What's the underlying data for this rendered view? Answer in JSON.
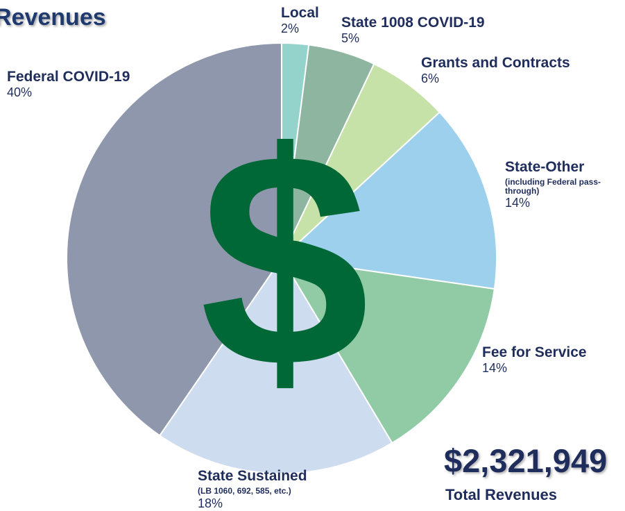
{
  "chart_data": {
    "type": "pie",
    "title": "Revenues",
    "categories": [
      "Local",
      "State 1008 COVID-19",
      "Grants and Contracts",
      "State-Other",
      "Fee for Service",
      "State Sustained",
      "Federal COVID-19"
    ],
    "sublabels": [
      null,
      null,
      null,
      "(including Federal pass-through)",
      null,
      "(LB 1060, 692, 585, etc.)",
      null
    ],
    "values": [
      2,
      5,
      6,
      14,
      14,
      18,
      40
    ],
    "value_labels": [
      "2%",
      "5%",
      "6%",
      "14%",
      "14%",
      "18%",
      "40%"
    ],
    "colors": [
      "#93d3cc",
      "#8db5a0",
      "#c6e2a8",
      "#9dd0ec",
      "#91cba6",
      "#cedcf0",
      "#8f97ad"
    ],
    "symbol": "$",
    "total": "$2,321,949",
    "total_label": "Total Revenues"
  }
}
